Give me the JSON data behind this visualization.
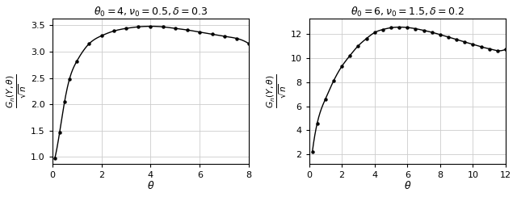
{
  "plot1": {
    "title": "$\\theta_0 = 4, \\nu_0 = 0.5, \\delta = 0.3$",
    "xlim": [
      0,
      8
    ],
    "ylim": [
      0.875,
      3.625
    ],
    "xticks": [
      0,
      2,
      4,
      6,
      8
    ],
    "yticks": [
      1.0,
      1.5,
      2.0,
      2.5,
      3.0,
      3.5
    ],
    "xlabel": "$\\theta$",
    "ylabel": "$\\frac{G_n(Y,\\theta)}{\\sqrt{n}}$",
    "marker_x": [
      0.1,
      0.3,
      0.5,
      0.7,
      1.0,
      1.5,
      2.0,
      2.5,
      3.0,
      3.5,
      4.0,
      4.5,
      5.0,
      5.5,
      6.0,
      6.5,
      7.0,
      7.5,
      8.0
    ],
    "marker_y": [
      0.97,
      1.47,
      2.05,
      2.48,
      2.82,
      3.15,
      3.3,
      3.39,
      3.44,
      3.47,
      3.48,
      3.47,
      3.44,
      3.41,
      3.37,
      3.33,
      3.29,
      3.25,
      3.15
    ]
  },
  "plot2": {
    "title": "$\\theta_0 = 6, \\nu_0 = 1.5, \\delta = 0.2$",
    "xlim": [
      0,
      12
    ],
    "ylim": [
      1.25,
      13.25
    ],
    "xticks": [
      0,
      2,
      4,
      6,
      8,
      10,
      12
    ],
    "yticks": [
      2.0,
      4.0,
      6.0,
      8.0,
      10.0,
      12.0
    ],
    "xlabel": "$\\theta$",
    "ylabel": "$\\frac{G_n(Y,\\theta)}{\\sqrt{n}}$",
    "marker_x": [
      0.2,
      0.5,
      1.0,
      1.5,
      2.0,
      2.5,
      3.0,
      3.5,
      4.0,
      4.5,
      5.0,
      5.5,
      6.0,
      6.5,
      7.0,
      7.5,
      8.0,
      8.5,
      9.0,
      9.5,
      10.0,
      10.5,
      11.0,
      11.5,
      12.0
    ],
    "marker_y": [
      2.2,
      4.6,
      6.6,
      8.1,
      9.3,
      10.2,
      11.0,
      11.6,
      12.1,
      12.35,
      12.5,
      12.55,
      12.52,
      12.42,
      12.28,
      12.12,
      11.93,
      11.73,
      11.52,
      11.32,
      11.12,
      10.92,
      10.75,
      10.6,
      10.72
    ]
  },
  "marker_color": "black",
  "line_color": "black",
  "background_color": "white",
  "grid_color": "#cccccc"
}
